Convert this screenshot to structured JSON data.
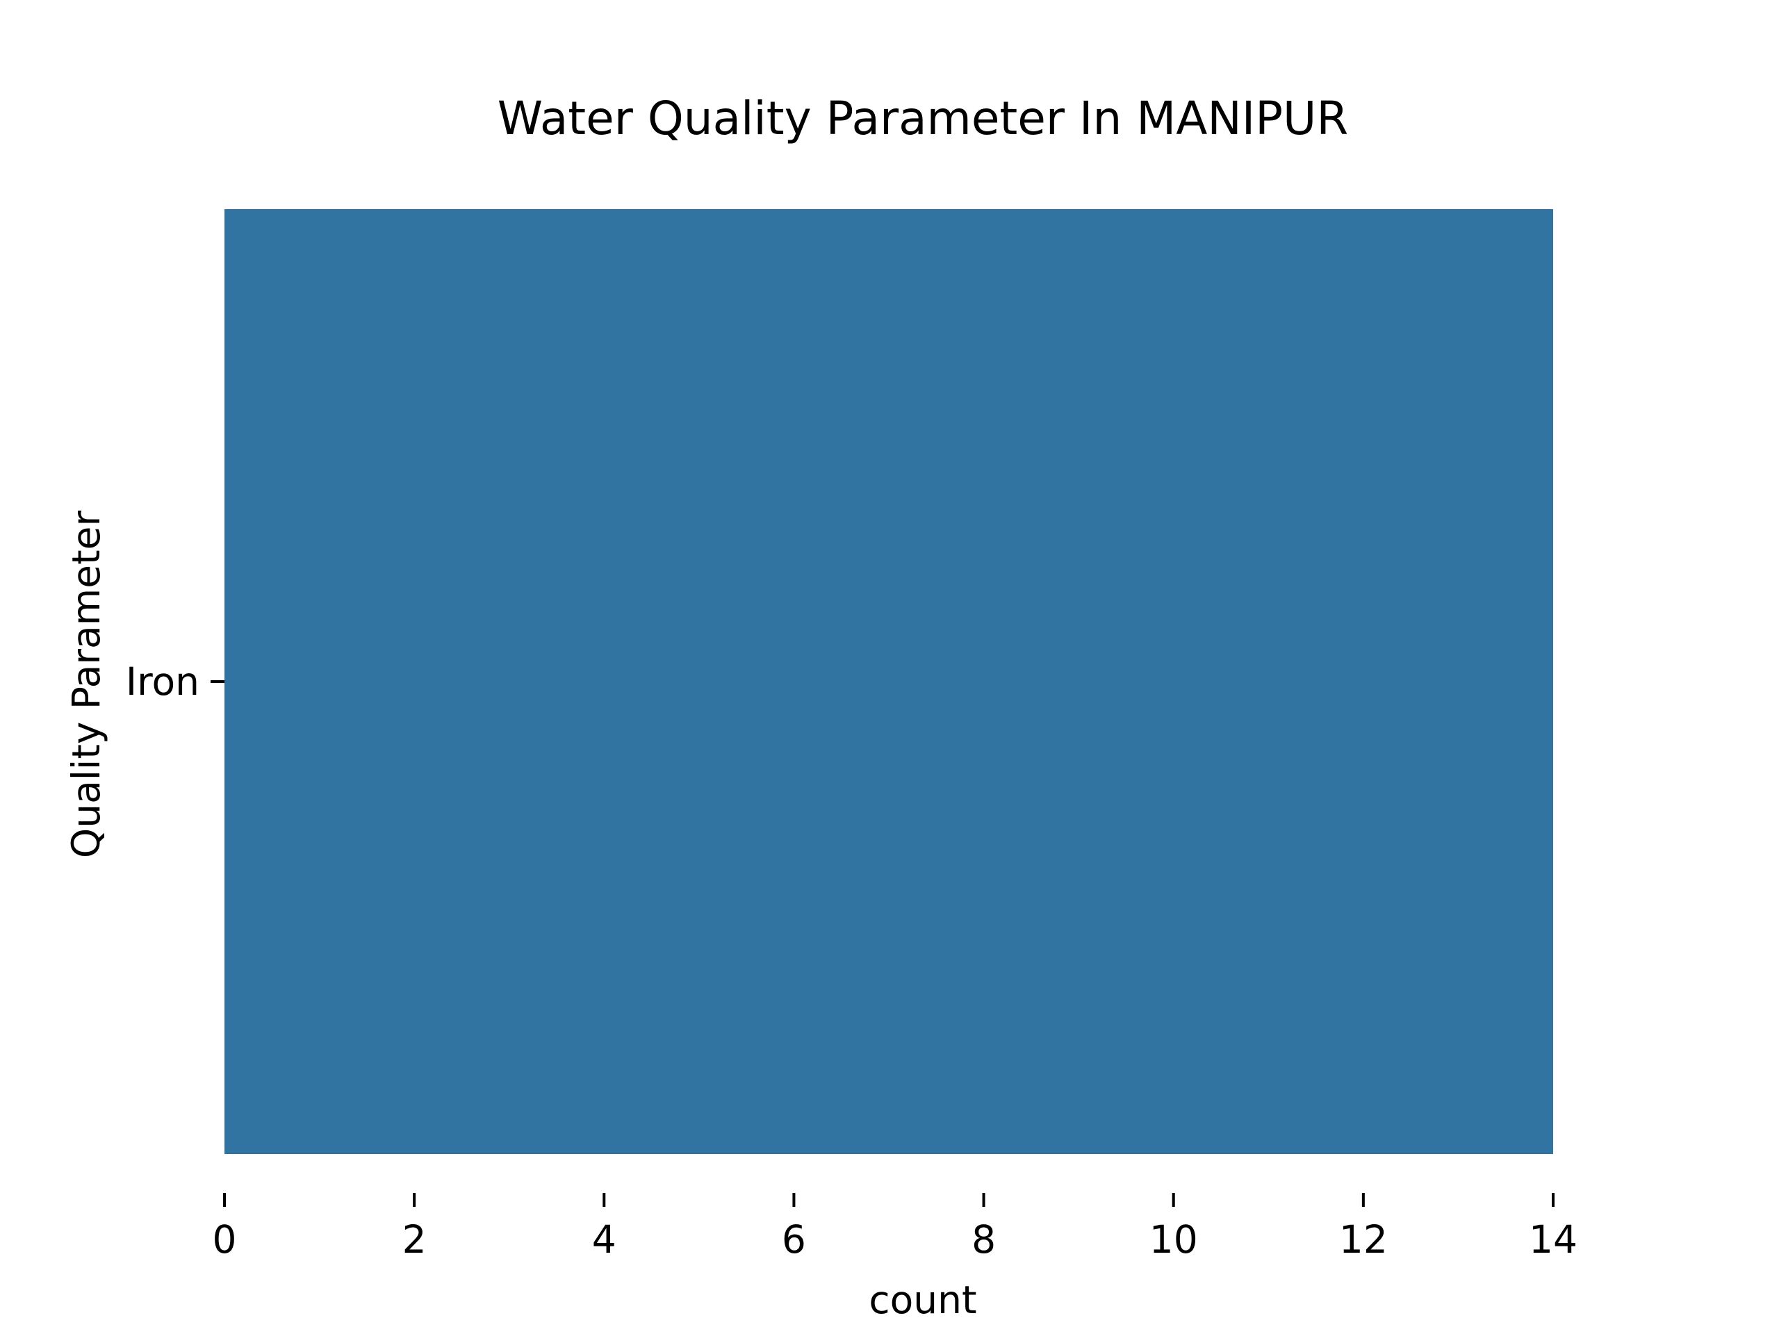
{
  "chart_data": {
    "type": "bar",
    "orientation": "horizontal",
    "title": "Water Quality Parameter In MANIPUR",
    "xlabel": "count",
    "ylabel": "Quality Parameter",
    "categories": [
      "Iron"
    ],
    "values": [
      14
    ],
    "xlim": [
      0,
      14
    ],
    "xticks": [
      0,
      2,
      4,
      6,
      8,
      10,
      12,
      14
    ],
    "grid": false,
    "legend": false,
    "bar_color": "#3274a1"
  }
}
